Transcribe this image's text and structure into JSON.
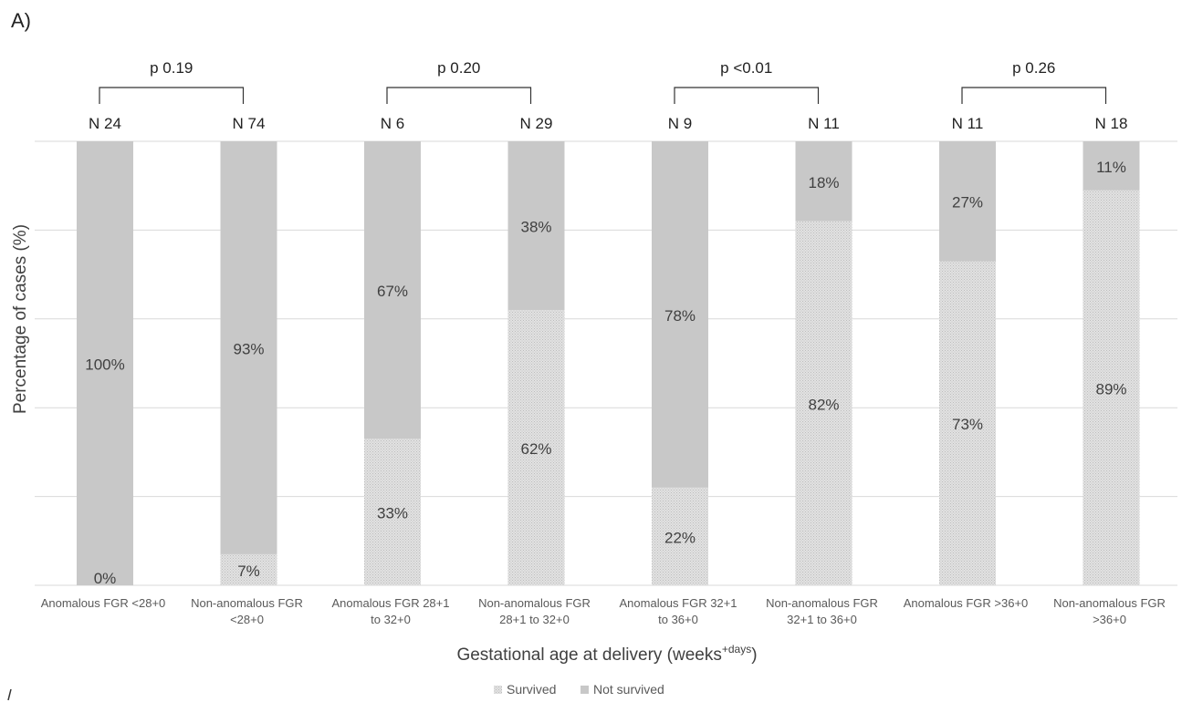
{
  "panel_label": "A)",
  "colors": {
    "not_survived": "#c8c8c8",
    "survived_base": "#e2e2e2",
    "survived_hatch": "#bdbdbd",
    "gridline": "#d9d9d9",
    "text": "#404040"
  },
  "chart_data": {
    "type": "bar",
    "stacked": true,
    "title": "",
    "xlabel": "Gestational age at delivery (weeks",
    "xlabel_superscript": "+days",
    "xlabel_suffix": ")",
    "ylabel": "Percentage of cases (%)",
    "ylim": [
      0,
      100
    ],
    "grid": true,
    "y_gridlines": [
      20,
      40,
      60,
      80,
      100
    ],
    "legend_position": "bottom",
    "categories": [
      [
        "Anomalous FGR <28+0"
      ],
      [
        "Non-anomalous FGR",
        "<28+0"
      ],
      [
        "Anomalous FGR 28+1",
        "to 32+0"
      ],
      [
        "Non-anomalous FGR",
        "28+1 to 32+0"
      ],
      [
        "Anomalous FGR 32+1",
        "to 36+0"
      ],
      [
        "Non-anomalous FGR",
        "32+1 to 36+0"
      ],
      [
        "Anomalous FGR >36+0"
      ],
      [
        "Non-anomalous FGR",
        ">36+0"
      ]
    ],
    "n_labels": [
      "N 24",
      "N 74",
      "N 6",
      "N 29",
      "N 9",
      "N 11",
      "N 11",
      "N 18"
    ],
    "series": [
      {
        "name": "Survived",
        "values": [
          0,
          7,
          33,
          62,
          22,
          82,
          73,
          89
        ],
        "labels": [
          "0%",
          "7%",
          "33%",
          "62%",
          "22%",
          "82%",
          "73%",
          "89%"
        ]
      },
      {
        "name": "Not survived",
        "values": [
          100,
          93,
          67,
          38,
          78,
          18,
          27,
          11
        ],
        "labels": [
          "100%",
          "93%",
          "67%",
          "38%",
          "78%",
          "18%",
          "27%",
          "11%"
        ]
      }
    ],
    "comparisons": [
      {
        "pair": [
          0,
          1
        ],
        "label": "p 0.19"
      },
      {
        "pair": [
          2,
          3
        ],
        "label": "p 0.20"
      },
      {
        "pair": [
          4,
          5
        ],
        "label": "p <0.01"
      },
      {
        "pair": [
          6,
          7
        ],
        "label": "p 0.26"
      }
    ]
  }
}
